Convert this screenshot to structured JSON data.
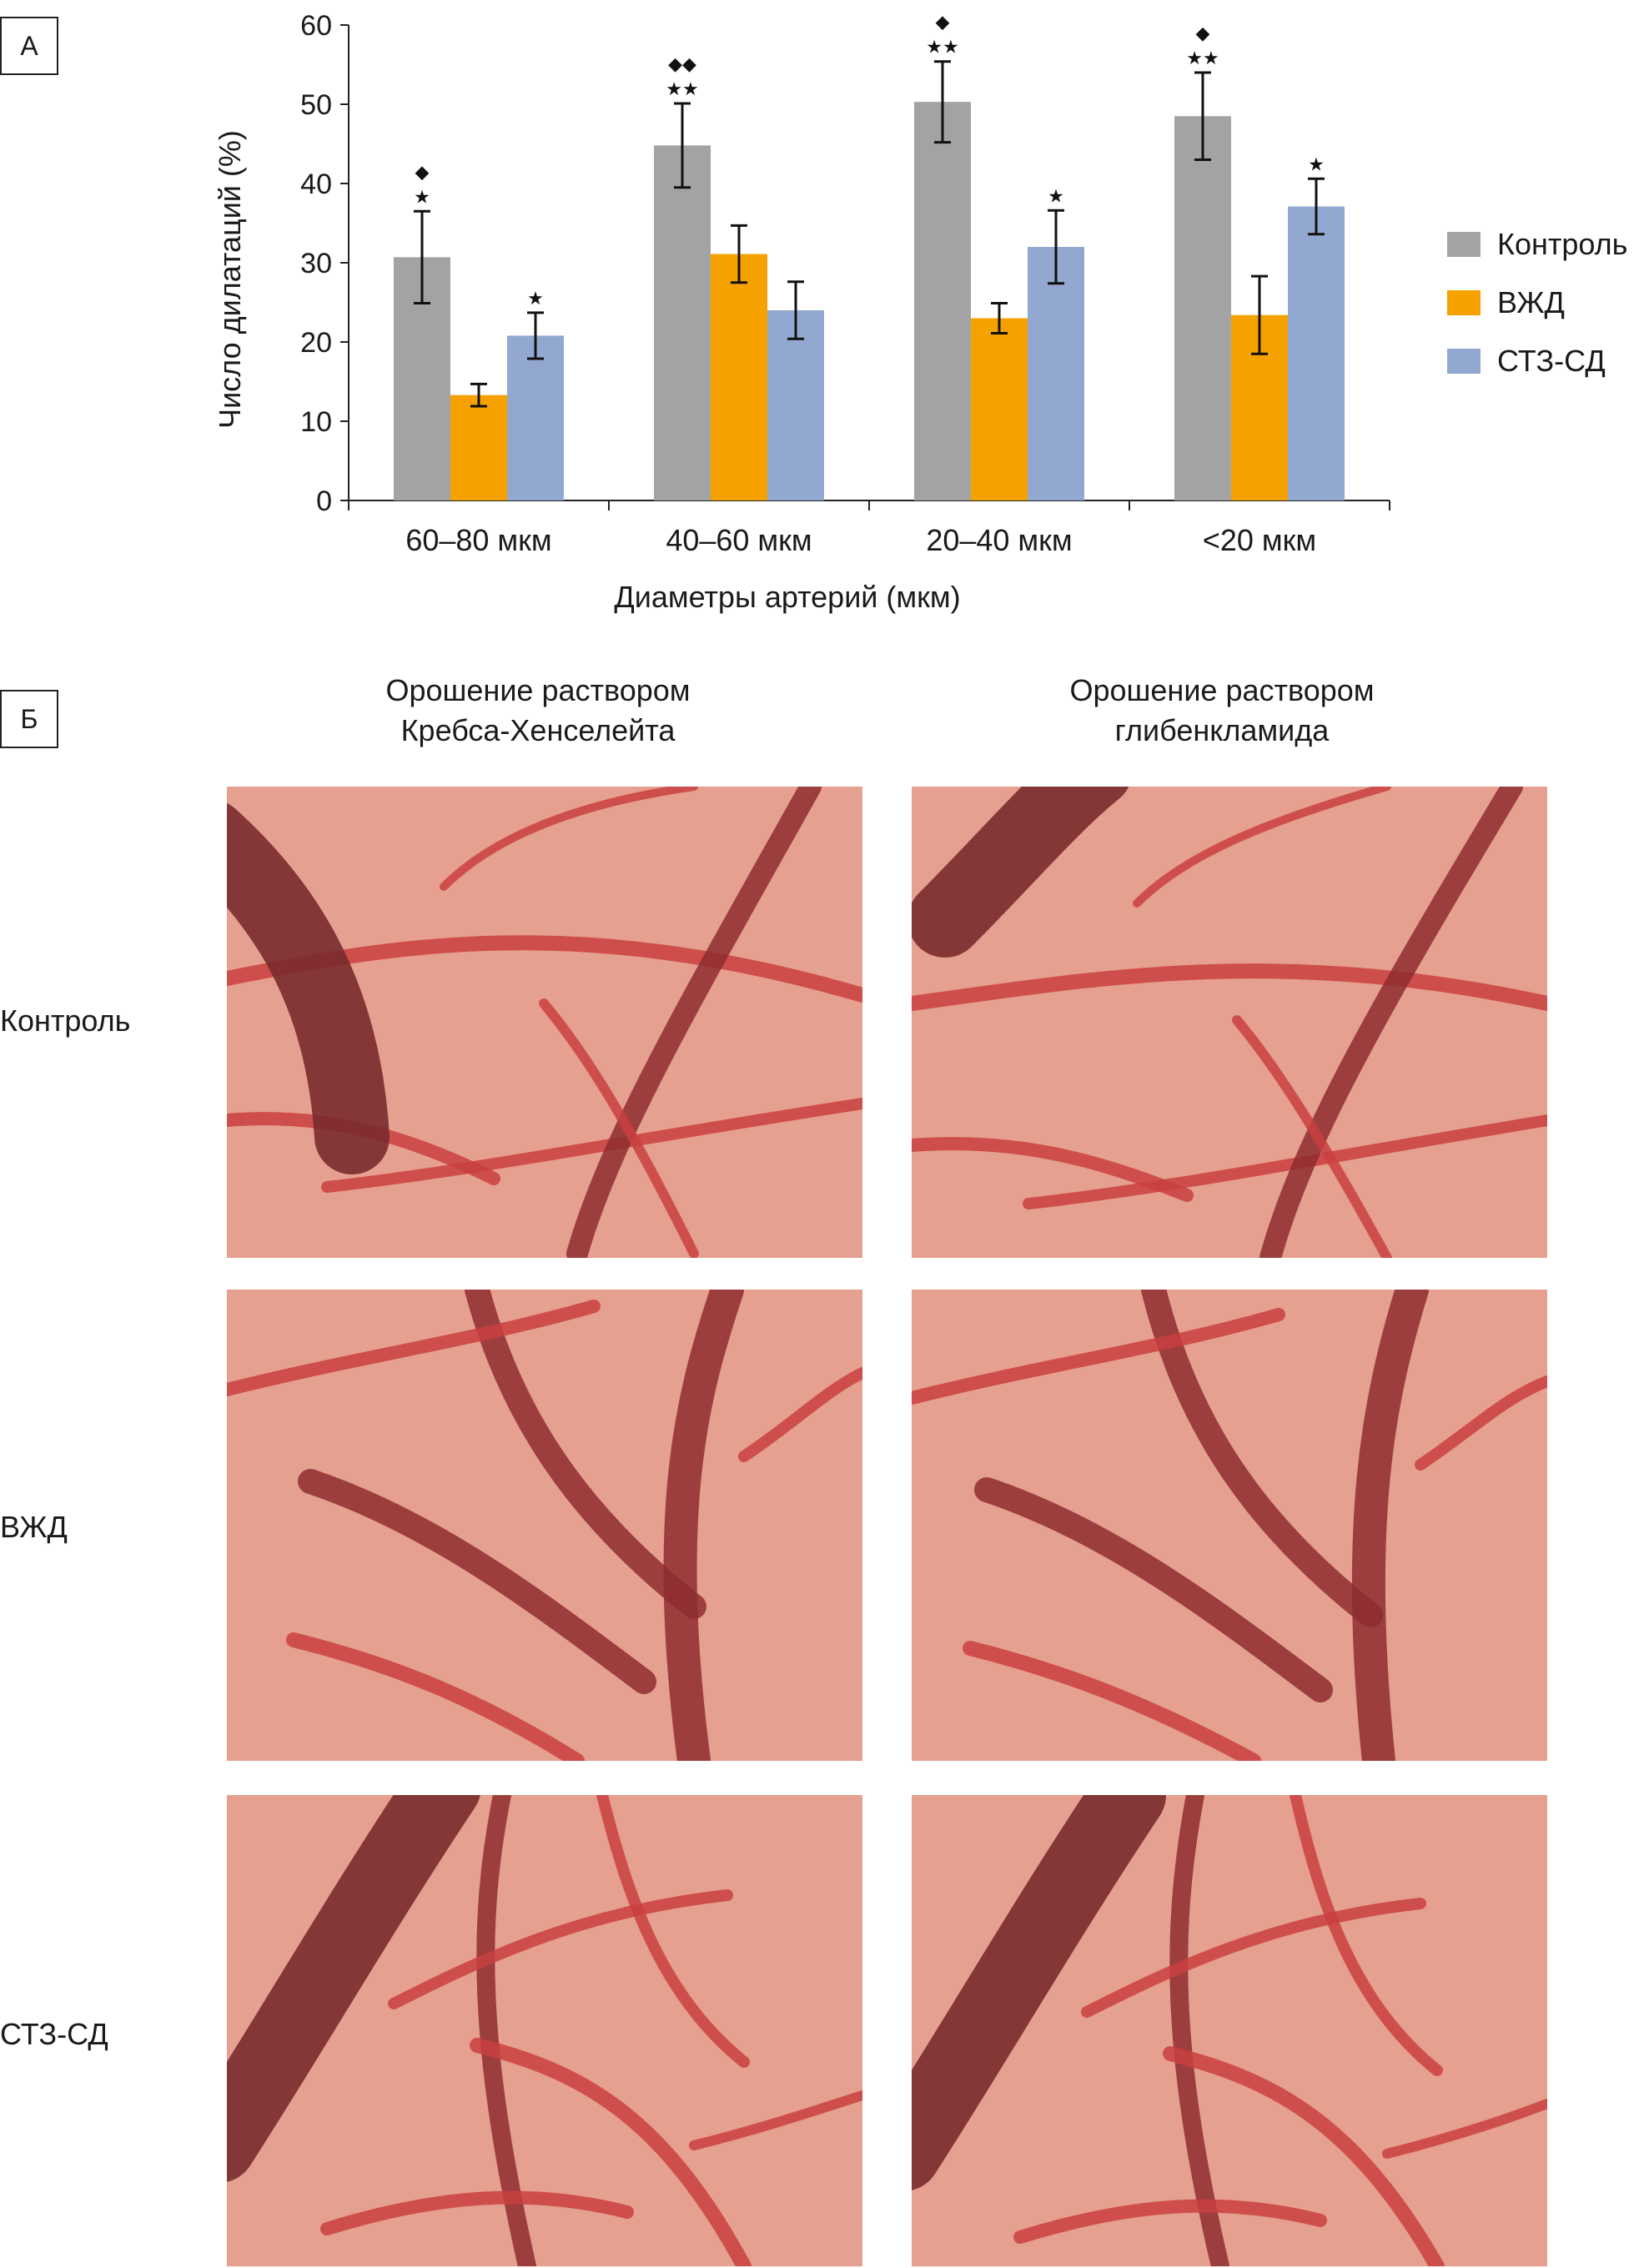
{
  "panel_a": {
    "label": "А"
  },
  "panel_b": {
    "label": "Б",
    "column_headers": [
      {
        "line1": "Орошение раствором",
        "line2": "Кребса-Хенселейта"
      },
      {
        "line1": "Орошение раствором",
        "line2": "глибенкламида"
      }
    ],
    "row_labels": [
      "Контроль",
      "ВЖД",
      "СТЗ-СД"
    ],
    "image_colors": {
      "tissue": "#e6a08f",
      "vessel": "#c94040",
      "vessel_dark": "#8e2d30",
      "large_vessel": "#7a2a2e"
    }
  },
  "chart_data": {
    "type": "bar",
    "categories": [
      "60–80 мкм",
      "40–60 мкм",
      "20–40 мкм",
      "<20 мкм"
    ],
    "xlabel": "Диаметры артерий (мкм)",
    "ylabel": "Число дилатаций (%)",
    "ylim": [
      0,
      60
    ],
    "yticks": [
      0,
      10,
      20,
      30,
      40,
      50,
      60
    ],
    "legend_position": "right",
    "series": [
      {
        "name": "Контроль",
        "color": "#a3a3a3",
        "values": [
          30.7,
          44.8,
          50.3,
          48.5
        ],
        "errors": [
          5.8,
          5.3,
          5.1,
          5.5
        ],
        "annotations": [
          "◆\n★",
          "◆◆\n★★",
          "◆\n★★",
          "◆\n★★"
        ]
      },
      {
        "name": "ВЖД",
        "color": "#f5a200",
        "values": [
          13.3,
          31.1,
          23.0,
          23.4
        ],
        "errors": [
          1.4,
          3.6,
          1.9,
          4.9
        ],
        "annotations": [
          "",
          "",
          "",
          ""
        ]
      },
      {
        "name": "СТЗ-СД",
        "color": "#93a8d1",
        "values": [
          20.8,
          24.0,
          32.0,
          37.1
        ],
        "errors": [
          2.9,
          3.6,
          4.6,
          3.5
        ],
        "annotations": [
          "★",
          "",
          "★",
          "★"
        ]
      }
    ]
  }
}
